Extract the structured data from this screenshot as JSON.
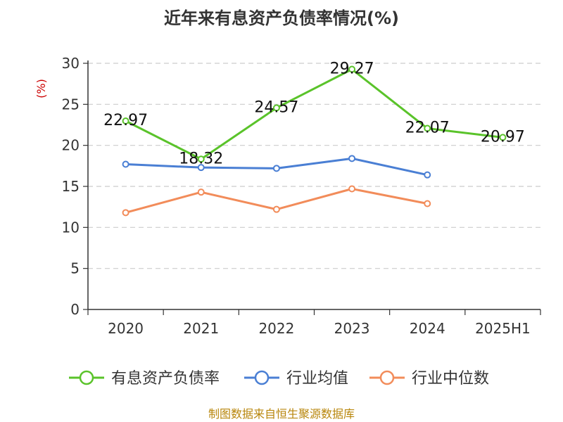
{
  "chart_data": {
    "type": "line",
    "title": "近年来有息资产负债率情况(%)",
    "ylabel": "(%)",
    "categories": [
      "2020",
      "2021",
      "2022",
      "2023",
      "2024",
      "2025H1"
    ],
    "ylim": [
      0,
      30
    ],
    "yticks": [
      "0",
      "5",
      "10",
      "15",
      "20",
      "25",
      "30"
    ],
    "grid": true,
    "legend_position": "bottom",
    "series": [
      {
        "name": "有息资产负债率",
        "color": "#5ac32a",
        "values": [
          22.97,
          18.32,
          24.57,
          29.27,
          22.07,
          20.97
        ],
        "labels": [
          "22.97",
          "18.32",
          "24.57",
          "29.27",
          "22.07",
          "20.97"
        ]
      },
      {
        "name": "行业均值",
        "color": "#4a7fd4",
        "values": [
          17.7,
          17.3,
          17.2,
          18.4,
          16.4,
          null
        ]
      },
      {
        "name": "行业中位数",
        "color": "#f28c5a",
        "values": [
          11.8,
          14.3,
          12.2,
          14.7,
          12.9,
          null
        ]
      }
    ]
  },
  "source_note": "制图数据来自恒生聚源数据库"
}
